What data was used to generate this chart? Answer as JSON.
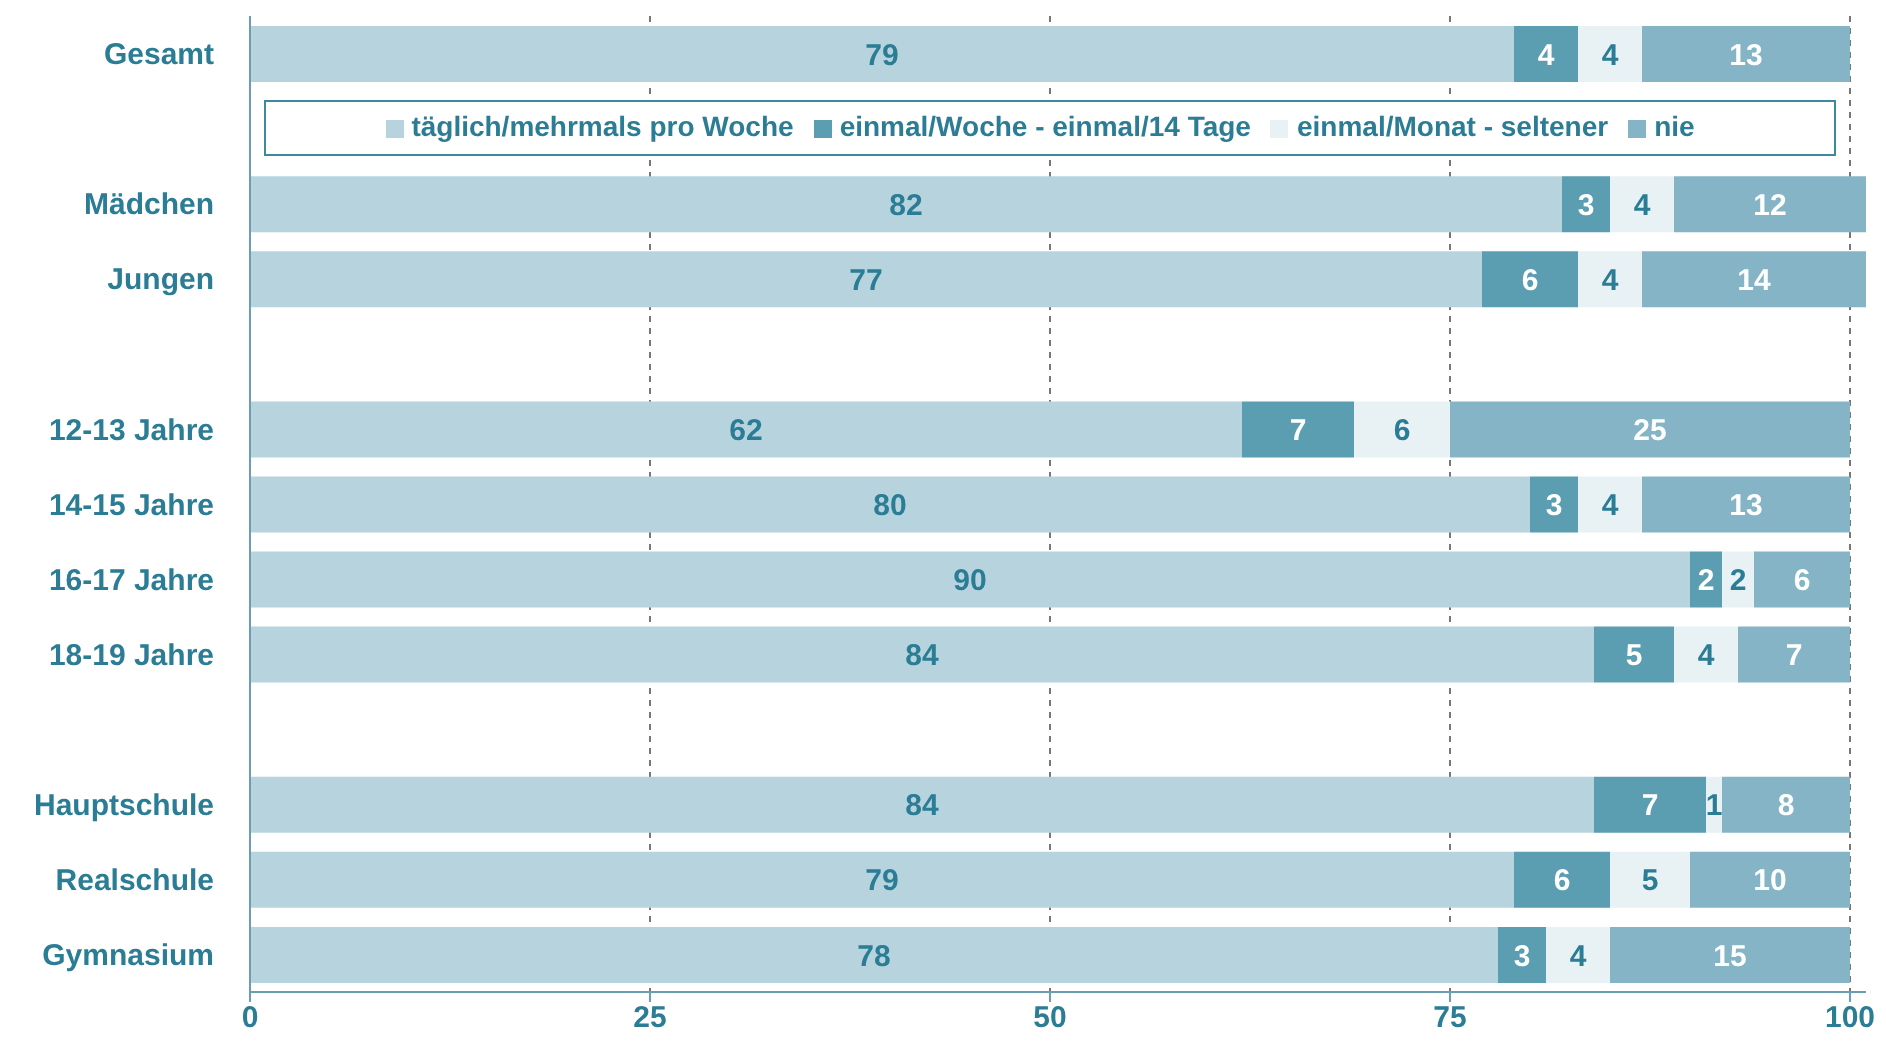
{
  "chart_data": {
    "type": "bar",
    "orientation": "horizontal",
    "stacked": true,
    "categories": [
      "Gesamt",
      null,
      "Mädchen",
      "Jungen",
      null,
      "12-13 Jahre",
      "14-15 Jahre",
      "16-17 Jahre",
      "18-19 Jahre",
      null,
      "Hauptschule",
      "Realschule",
      "Gymnasium"
    ],
    "series": [
      {
        "name": "täglich/mehrmals pro Woche",
        "color": "#b7d4de",
        "values": [
          79,
          null,
          82,
          77,
          null,
          62,
          80,
          90,
          84,
          null,
          84,
          79,
          78
        ]
      },
      {
        "name": "einmal/Woche - einmal/14 Tage",
        "color": "#5b9db1",
        "values": [
          4,
          null,
          3,
          6,
          null,
          7,
          3,
          2,
          5,
          null,
          7,
          6,
          3
        ]
      },
      {
        "name": "einmal/Monat - seltener",
        "color": "#e8f1f4",
        "values": [
          4,
          null,
          4,
          4,
          null,
          6,
          4,
          2,
          4,
          null,
          1,
          5,
          4
        ]
      },
      {
        "name": "nie",
        "color": "#84b4c5",
        "values": [
          13,
          null,
          12,
          14,
          null,
          25,
          13,
          6,
          7,
          null,
          8,
          10,
          15
        ]
      }
    ],
    "xlim": [
      0,
      101
    ],
    "xticks": [
      0,
      25,
      50,
      75,
      100
    ],
    "grid": "x",
    "legend": "top",
    "data_labels": true
  }
}
